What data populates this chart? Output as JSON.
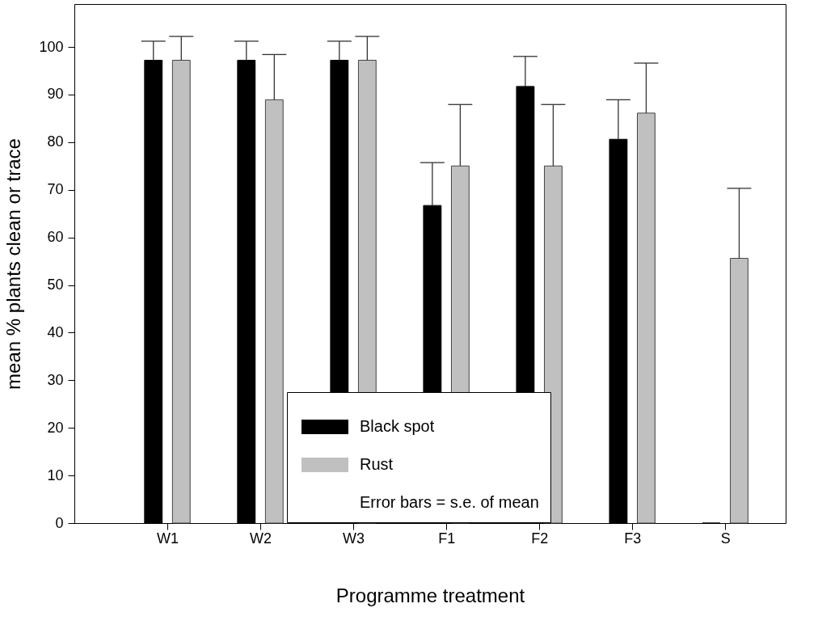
{
  "chart_data": {
    "type": "bar",
    "xlabel": "Programme treatment",
    "ylabel": "mean % plants clean or trace",
    "categories": [
      "W1",
      "W2",
      "W3",
      "F1",
      "F2",
      "F3",
      "S"
    ],
    "series": [
      {
        "name": "Black spot",
        "color": "#000000",
        "values": [
          97.2,
          97.2,
          97.2,
          66.7,
          91.7,
          80.6,
          0
        ],
        "errors": [
          [
            97.2,
            101.2
          ],
          [
            97.2,
            101.2
          ],
          [
            97.2,
            101.2
          ],
          [
            66.7,
            75.7
          ],
          [
            91.7,
            98.0
          ],
          [
            80.6,
            88.9
          ],
          null
        ]
      },
      {
        "name": "Rust",
        "color": "#c0c0c0",
        "values": [
          97.2,
          88.9,
          97.2,
          75,
          75,
          86.1,
          55.6
        ],
        "errors": [
          [
            97.2,
            102.2
          ],
          [
            88.9,
            98.4
          ],
          [
            97.2,
            102.2
          ],
          [
            75,
            87.9
          ],
          [
            75,
            87.9
          ],
          [
            86.1,
            96.6
          ],
          [
            55.6,
            70.3
          ]
        ]
      }
    ],
    "annotations": [
      "Error bars = s.e. of mean"
    ],
    "ylim": [
      0,
      109
    ],
    "yticks": [
      0,
      10,
      20,
      30,
      40,
      50,
      60,
      70,
      80,
      90,
      100
    ],
    "grid": false,
    "legend": "bottom"
  }
}
